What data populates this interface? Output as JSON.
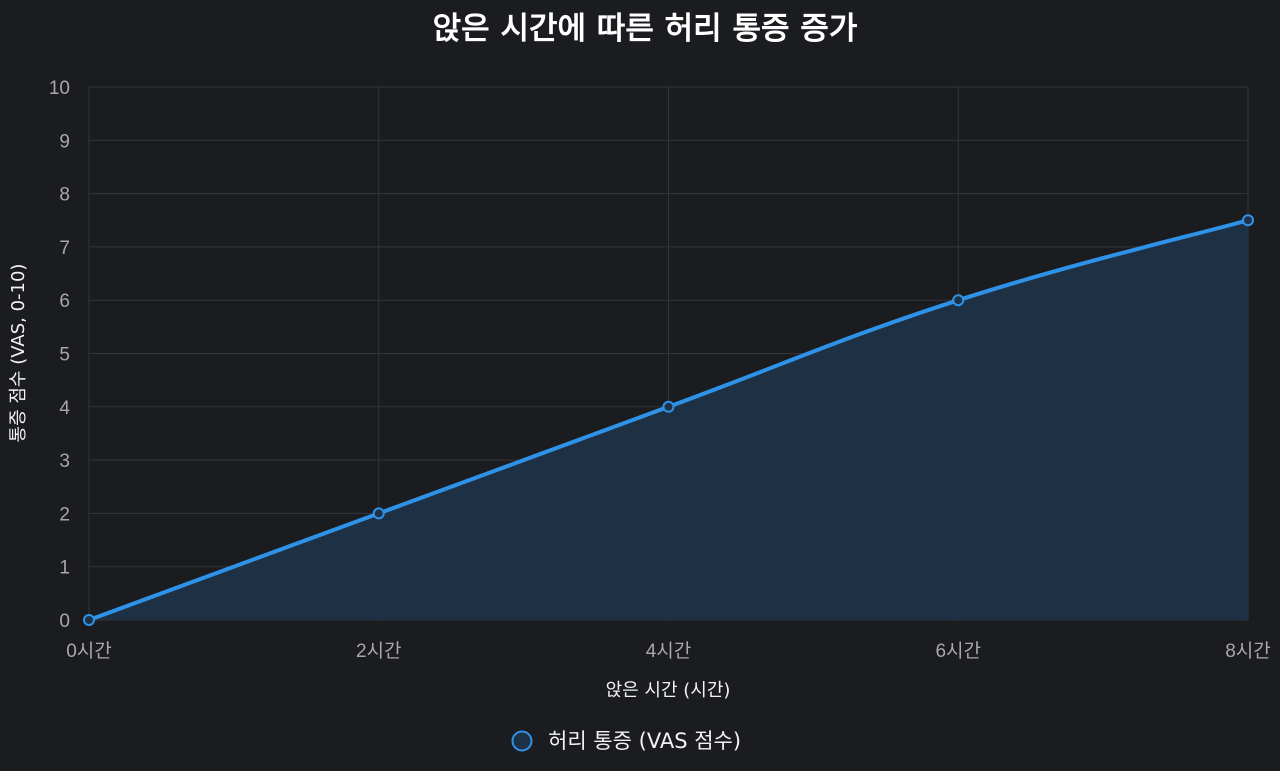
{
  "chart_data": {
    "type": "line",
    "title": "앉은 시간에 따른 허리 통증 증가",
    "xlabel": "앉은 시간 (시간)",
    "ylabel": "통증 점수 (VAS, 0-10)",
    "categories": [
      "0시간",
      "2시간",
      "4시간",
      "6시간",
      "8시간"
    ],
    "x": [
      0,
      2,
      4,
      6,
      8
    ],
    "series": [
      {
        "name": "허리 통증 (VAS 점수)",
        "values": [
          0,
          2,
          4,
          6,
          7.5
        ],
        "color": "#2e93e8",
        "fill": "area"
      }
    ],
    "yticks": [
      "0",
      "1",
      "2",
      "3",
      "4",
      "5",
      "6",
      "7",
      "8",
      "9",
      "10"
    ],
    "ylim": [
      0,
      10
    ],
    "xlim": [
      0,
      8
    ],
    "grid": true,
    "legend_position": "bottom"
  },
  "colors": {
    "background": "#1b1c20",
    "line": "#2e93e8",
    "area_fill": "#1f3147",
    "grid": "#33353b"
  }
}
